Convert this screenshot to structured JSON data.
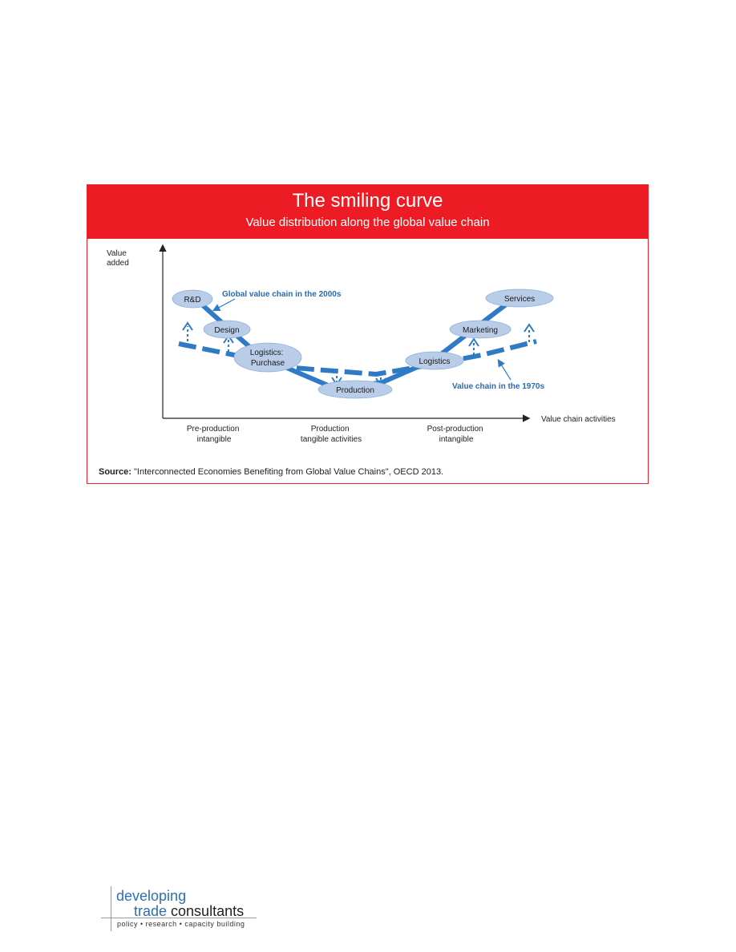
{
  "title": "The smiling curve",
  "subtitle": "Value distribution along the global value chain",
  "axes": {
    "y_label_line1": "Value",
    "y_label_line2": "added",
    "x_label": "Value chain activities"
  },
  "stages": {
    "pre_line1": "Pre-production",
    "pre_line2": "intangible",
    "prod_line1": "Production",
    "prod_line2": "tangible activities",
    "post_line1": "Post-production",
    "post_line2": "intangible"
  },
  "nodes": {
    "rd": "R&D",
    "design": "Design",
    "logistics_purchase_line1": "Logistics:",
    "logistics_purchase_line2": "Purchase",
    "production": "Production",
    "logistics": "Logistics",
    "marketing": "Marketing",
    "services": "Services"
  },
  "annotations": {
    "gvc_2000s": "Global value chain in the 2000s",
    "vc_1970s": "Value chain in the 1970s"
  },
  "source": {
    "label": "Source:",
    "text": " \"Interconnected Economies Benefiting from Global Value Chains\", OECD 2013."
  },
  "logo": {
    "word1": "developing",
    "word2": "trade",
    "word3": " consultants",
    "tagline": "policy  •  research  •  capacity building"
  },
  "colors": {
    "banner": "#ed1c24",
    "curve": "#2f7ac4",
    "node_fill": "#b9cde8",
    "annotation_text": "#2a6ab0"
  },
  "icons": [
    "arrow-up-icon",
    "arrow-down-icon",
    "arrow-right-icon"
  ]
}
